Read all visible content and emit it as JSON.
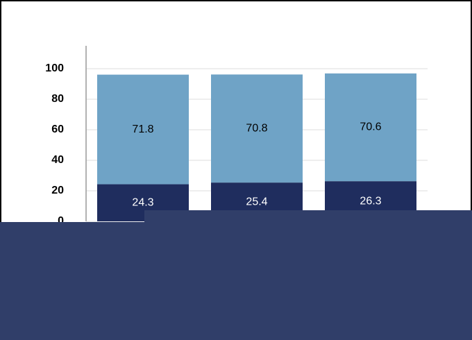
{
  "chart_data": {
    "type": "stacked_bar",
    "categories": [
      null,
      null,
      null
    ],
    "series": [
      {
        "color": "#1f2d5e",
        "label_color": "#ffffff",
        "values": [
          24.3,
          25.4,
          26.3
        ]
      },
      {
        "color": "#6fa3c6",
        "label_color": "#000000",
        "values": [
          71.8,
          70.8,
          70.6
        ]
      }
    ],
    "ylim": [
      0,
      115
    ],
    "yticks": [
      0,
      20,
      40,
      60,
      80,
      100
    ],
    "grid": true
  }
}
